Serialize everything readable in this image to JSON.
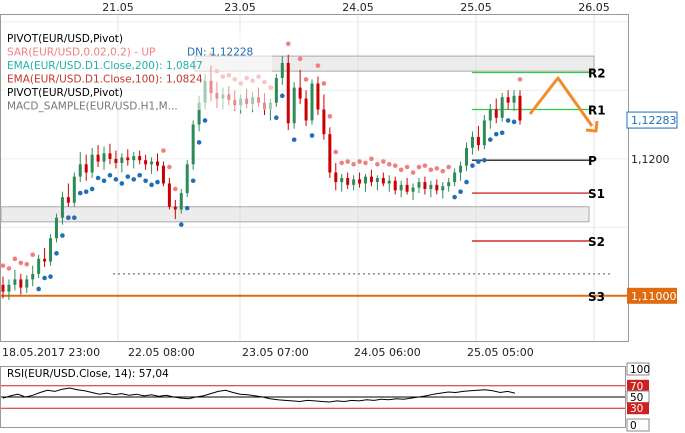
{
  "chart_data": {
    "type": "candlestick",
    "symbol": "EUR/USD",
    "timeframe": "H1",
    "top_axis_labels": [
      "21.05",
      "23.05",
      "24.05",
      "25.05",
      "26.05"
    ],
    "bottom_axis_labels": [
      "18.05.2017 23:00",
      "22.05 08:00",
      "23.05 07:00",
      "24.05 06:00",
      "25.05 05:00"
    ],
    "price_axis_labels": [
      {
        "text": "1,12283",
        "value": 1.12283,
        "style": "current"
      },
      {
        "text": "1,1200",
        "value": 1.12,
        "style": "tick"
      },
      {
        "text": "1,11000",
        "value": 1.11,
        "style": "orange"
      }
    ],
    "ylim": [
      1.1067,
      1.1305
    ],
    "indicator_legend": [
      {
        "text": "PIVOT(EUR/USD,Pivot)",
        "color": "#000000"
      },
      {
        "text": "SAR(EUR/USD,0.02,0.2) - UP",
        "color": "#f08080",
        "extra": "DN: 1,12228",
        "extra_color": "#1e6fb5"
      },
      {
        "text": "EMA(EUR/USD.D1.Close,200): 1,0847",
        "color": "#20b2aa"
      },
      {
        "text": "EMA(EUR/USD.D1.Close,100): 1,0824",
        "color": "#c0392b"
      },
      {
        "text": "PIVOT(EUR/USD,Pivot)",
        "color": "#000000"
      },
      {
        "text": "MACD_SAMPLE(EUR/USD.H1,M...",
        "color": "#777777"
      }
    ],
    "pivot_levels": [
      {
        "name": "R2",
        "value": 1.1263,
        "color": "#2ecc40"
      },
      {
        "name": "R1",
        "value": 1.1236,
        "color": "#2ecc40"
      },
      {
        "name": "P",
        "value": 1.1199,
        "color": "#000000"
      },
      {
        "name": "S1",
        "value": 1.1175,
        "color": "#cc0000"
      },
      {
        "name": "S2",
        "value": 1.114,
        "color": "#cc0000"
      },
      {
        "name": "S3",
        "value": 1.11,
        "color": "#e06a10"
      }
    ],
    "horizontal_line_value": 1.11,
    "dotted_line_value": 1.1116,
    "zones": [
      {
        "low": 1.1264,
        "high": 1.1275
      },
      {
        "low": 1.1154,
        "high": 1.1165
      }
    ],
    "colors": {
      "bull": "#2e8b57",
      "bear": "#cc0000",
      "sar_up": "#f08080",
      "sar_dn": "#1e6fb5",
      "annotation": "#f28c28"
    },
    "candles": [
      {
        "o": 1.1108,
        "h": 1.1114,
        "l": 1.1098,
        "c": 1.1103
      },
      {
        "o": 1.1103,
        "h": 1.1112,
        "l": 1.1097,
        "c": 1.1108
      },
      {
        "o": 1.1108,
        "h": 1.1119,
        "l": 1.1104,
        "c": 1.1112
      },
      {
        "o": 1.1112,
        "h": 1.1116,
        "l": 1.1101,
        "c": 1.1106
      },
      {
        "o": 1.1106,
        "h": 1.1115,
        "l": 1.1102,
        "c": 1.1112
      },
      {
        "o": 1.1112,
        "h": 1.1122,
        "l": 1.1107,
        "c": 1.1116
      },
      {
        "o": 1.1116,
        "h": 1.113,
        "l": 1.1113,
        "c": 1.1127
      },
      {
        "o": 1.1127,
        "h": 1.1135,
        "l": 1.1121,
        "c": 1.1125
      },
      {
        "o": 1.1125,
        "h": 1.1145,
        "l": 1.1122,
        "c": 1.1142
      },
      {
        "o": 1.1142,
        "h": 1.116,
        "l": 1.1139,
        "c": 1.1157
      },
      {
        "o": 1.1157,
        "h": 1.1176,
        "l": 1.1152,
        "c": 1.1172
      },
      {
        "o": 1.1172,
        "h": 1.1182,
        "l": 1.1165,
        "c": 1.1168
      },
      {
        "o": 1.1168,
        "h": 1.119,
        "l": 1.1165,
        "c": 1.1187
      },
      {
        "o": 1.1187,
        "h": 1.1205,
        "l": 1.1183,
        "c": 1.1196
      },
      {
        "o": 1.1196,
        "h": 1.1203,
        "l": 1.1184,
        "c": 1.119
      },
      {
        "o": 1.119,
        "h": 1.1208,
        "l": 1.1186,
        "c": 1.1203
      },
      {
        "o": 1.1203,
        "h": 1.121,
        "l": 1.1194,
        "c": 1.1198
      },
      {
        "o": 1.1198,
        "h": 1.1209,
        "l": 1.1192,
        "c": 1.1204
      },
      {
        "o": 1.1204,
        "h": 1.1211,
        "l": 1.1196,
        "c": 1.12
      },
      {
        "o": 1.12,
        "h": 1.1206,
        "l": 1.1193,
        "c": 1.1197
      },
      {
        "o": 1.1197,
        "h": 1.1204,
        "l": 1.119,
        "c": 1.1201
      },
      {
        "o": 1.1201,
        "h": 1.1207,
        "l": 1.1195,
        "c": 1.1199
      },
      {
        "o": 1.1199,
        "h": 1.1205,
        "l": 1.1193,
        "c": 1.1202
      },
      {
        "o": 1.1202,
        "h": 1.1206,
        "l": 1.1196,
        "c": 1.1199
      },
      {
        "o": 1.1199,
        "h": 1.1203,
        "l": 1.1192,
        "c": 1.1196
      },
      {
        "o": 1.1196,
        "h": 1.1201,
        "l": 1.1189,
        "c": 1.1198
      },
      {
        "o": 1.1198,
        "h": 1.1204,
        "l": 1.1191,
        "c": 1.1195
      },
      {
        "o": 1.1195,
        "h": 1.1198,
        "l": 1.118,
        "c": 1.1182
      },
      {
        "o": 1.1182,
        "h": 1.1186,
        "l": 1.1163,
        "c": 1.1165
      },
      {
        "o": 1.1165,
        "h": 1.117,
        "l": 1.1156,
        "c": 1.1163
      },
      {
        "o": 1.1163,
        "h": 1.1178,
        "l": 1.116,
        "c": 1.1175
      },
      {
        "o": 1.1175,
        "h": 1.1199,
        "l": 1.1172,
        "c": 1.1196
      },
      {
        "o": 1.1196,
        "h": 1.1228,
        "l": 1.1192,
        "c": 1.1225
      },
      {
        "o": 1.1225,
        "h": 1.1246,
        "l": 1.122,
        "c": 1.1241
      },
      {
        "o": 1.1241,
        "h": 1.1262,
        "l": 1.1236,
        "c": 1.1257
      },
      {
        "o": 1.1257,
        "h": 1.1268,
        "l": 1.1242,
        "c": 1.1248
      },
      {
        "o": 1.1248,
        "h": 1.1256,
        "l": 1.1237,
        "c": 1.1244
      },
      {
        "o": 1.1244,
        "h": 1.1252,
        "l": 1.1236,
        "c": 1.1247
      },
      {
        "o": 1.1247,
        "h": 1.1253,
        "l": 1.1239,
        "c": 1.1243
      },
      {
        "o": 1.1243,
        "h": 1.125,
        "l": 1.1235,
        "c": 1.1239
      },
      {
        "o": 1.1239,
        "h": 1.1247,
        "l": 1.1233,
        "c": 1.1244
      },
      {
        "o": 1.1244,
        "h": 1.1251,
        "l": 1.1237,
        "c": 1.124
      },
      {
        "o": 1.124,
        "h": 1.1249,
        "l": 1.1234,
        "c": 1.1245
      },
      {
        "o": 1.1245,
        "h": 1.1252,
        "l": 1.1238,
        "c": 1.1241
      },
      {
        "o": 1.1241,
        "h": 1.1248,
        "l": 1.1232,
        "c": 1.1236
      },
      {
        "o": 1.1236,
        "h": 1.1244,
        "l": 1.1228,
        "c": 1.1241
      },
      {
        "o": 1.1241,
        "h": 1.1262,
        "l": 1.1238,
        "c": 1.1259
      },
      {
        "o": 1.1259,
        "h": 1.1275,
        "l": 1.1254,
        "c": 1.127
      },
      {
        "o": 1.127,
        "h": 1.1276,
        "l": 1.1221,
        "c": 1.1226
      },
      {
        "o": 1.1226,
        "h": 1.1256,
        "l": 1.1222,
        "c": 1.1252
      },
      {
        "o": 1.1252,
        "h": 1.1265,
        "l": 1.124,
        "c": 1.1244
      },
      {
        "o": 1.1244,
        "h": 1.125,
        "l": 1.1224,
        "c": 1.1228
      },
      {
        "o": 1.1228,
        "h": 1.1258,
        "l": 1.1225,
        "c": 1.1255
      },
      {
        "o": 1.1255,
        "h": 1.126,
        "l": 1.1232,
        "c": 1.1236
      },
      {
        "o": 1.1236,
        "h": 1.1247,
        "l": 1.1214,
        "c": 1.1218
      },
      {
        "o": 1.1218,
        "h": 1.1223,
        "l": 1.1186,
        "c": 1.119
      },
      {
        "o": 1.119,
        "h": 1.1197,
        "l": 1.1177,
        "c": 1.1183
      },
      {
        "o": 1.1183,
        "h": 1.1189,
        "l": 1.1176,
        "c": 1.1186
      },
      {
        "o": 1.1186,
        "h": 1.119,
        "l": 1.1178,
        "c": 1.1181
      },
      {
        "o": 1.1181,
        "h": 1.1188,
        "l": 1.1177,
        "c": 1.1185
      },
      {
        "o": 1.1185,
        "h": 1.119,
        "l": 1.1179,
        "c": 1.1182
      },
      {
        "o": 1.1182,
        "h": 1.1189,
        "l": 1.1176,
        "c": 1.1187
      },
      {
        "o": 1.1187,
        "h": 1.1192,
        "l": 1.118,
        "c": 1.1183
      },
      {
        "o": 1.1183,
        "h": 1.1188,
        "l": 1.1177,
        "c": 1.1186
      },
      {
        "o": 1.1186,
        "h": 1.119,
        "l": 1.118,
        "c": 1.1182
      },
      {
        "o": 1.1182,
        "h": 1.1188,
        "l": 1.1176,
        "c": 1.1184
      },
      {
        "o": 1.1184,
        "h": 1.1187,
        "l": 1.1174,
        "c": 1.1177
      },
      {
        "o": 1.1177,
        "h": 1.1184,
        "l": 1.1172,
        "c": 1.1181
      },
      {
        "o": 1.1181,
        "h": 1.1186,
        "l": 1.1174,
        "c": 1.1176
      },
      {
        "o": 1.1176,
        "h": 1.1182,
        "l": 1.117,
        "c": 1.1179
      },
      {
        "o": 1.1179,
        "h": 1.1186,
        "l": 1.1175,
        "c": 1.1183
      },
      {
        "o": 1.1183,
        "h": 1.1187,
        "l": 1.1174,
        "c": 1.1178
      },
      {
        "o": 1.1178,
        "h": 1.1184,
        "l": 1.1172,
        "c": 1.1181
      },
      {
        "o": 1.1181,
        "h": 1.1185,
        "l": 1.1174,
        "c": 1.1177
      },
      {
        "o": 1.1177,
        "h": 1.1183,
        "l": 1.1171,
        "c": 1.118
      },
      {
        "o": 1.118,
        "h": 1.1186,
        "l": 1.1176,
        "c": 1.1183
      },
      {
        "o": 1.1183,
        "h": 1.1193,
        "l": 1.118,
        "c": 1.119
      },
      {
        "o": 1.119,
        "h": 1.1198,
        "l": 1.1184,
        "c": 1.1195
      },
      {
        "o": 1.1195,
        "h": 1.1212,
        "l": 1.1191,
        "c": 1.1208
      },
      {
        "o": 1.1208,
        "h": 1.122,
        "l": 1.1203,
        "c": 1.1216
      },
      {
        "o": 1.1216,
        "h": 1.1224,
        "l": 1.1206,
        "c": 1.121
      },
      {
        "o": 1.121,
        "h": 1.1232,
        "l": 1.1207,
        "c": 1.1228
      },
      {
        "o": 1.1228,
        "h": 1.124,
        "l": 1.1222,
        "c": 1.1236
      },
      {
        "o": 1.1236,
        "h": 1.1244,
        "l": 1.1226,
        "c": 1.123
      },
      {
        "o": 1.123,
        "h": 1.1248,
        "l": 1.1227,
        "c": 1.1245
      },
      {
        "o": 1.1245,
        "h": 1.125,
        "l": 1.1236,
        "c": 1.1241
      },
      {
        "o": 1.1241,
        "h": 1.125,
        "l": 1.1235,
        "c": 1.1246
      },
      {
        "o": 1.1246,
        "h": 1.125,
        "l": 1.1225,
        "c": 1.1228
      }
    ],
    "rsi": {
      "label": "RSI(EUR/USD.Close, 14): 57,04",
      "levels": [
        {
          "text": "100",
          "value": 100,
          "badge": "#ffffff"
        },
        {
          "text": "70",
          "value": 70,
          "badge": "#cc2222"
        },
        {
          "text": "50",
          "value": 50,
          "badge": "#ffffff"
        },
        {
          "text": "30",
          "value": 30,
          "badge": "#cc2222"
        },
        {
          "text": "0",
          "value": 0,
          "badge": "#ffffff"
        }
      ],
      "values": [
        48,
        52,
        55,
        50,
        53,
        58,
        62,
        60,
        64,
        66,
        63,
        61,
        58,
        55,
        57,
        54,
        56,
        53,
        55,
        52,
        54,
        51,
        53,
        50,
        48,
        47,
        50,
        52,
        56,
        60,
        62,
        58,
        55,
        54,
        52,
        50,
        47,
        45,
        44,
        43,
        42,
        44,
        43,
        42,
        41,
        43,
        42,
        44,
        43,
        45,
        44,
        46,
        45,
        47,
        46,
        48,
        50,
        52,
        55,
        57,
        59,
        58,
        60,
        61,
        62,
        63,
        61,
        58,
        60,
        57
      ]
    }
  }
}
